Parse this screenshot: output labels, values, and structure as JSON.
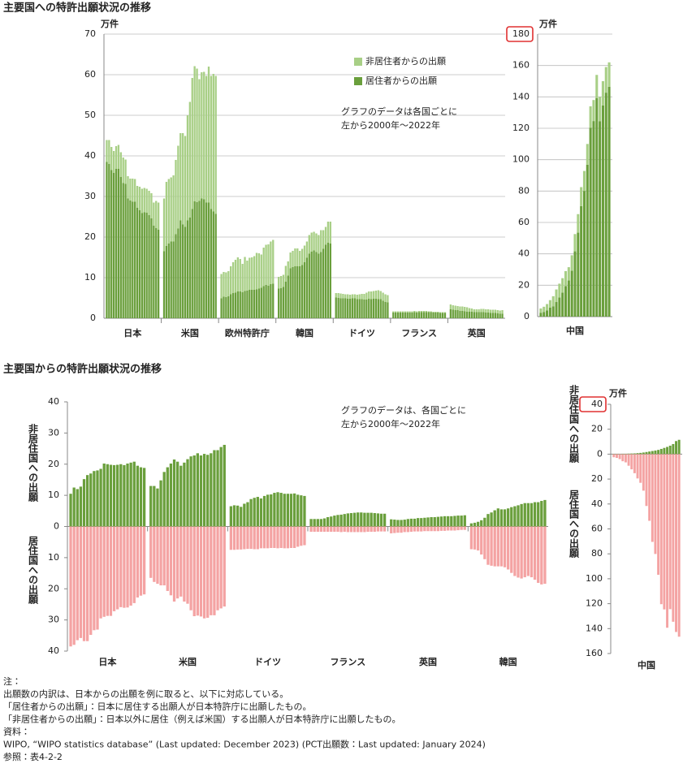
{
  "chart_data": [
    {
      "type": "stacked-bar",
      "title": "主要国への特許出願状況の推移",
      "unit": "万件",
      "ylim": [
        0,
        70
      ],
      "yticks": [
        0,
        10,
        20,
        30,
        40,
        50,
        60,
        70
      ],
      "grid": true,
      "note": [
        "グラフのデータは各国ごとに",
        "左から2000年～2022年"
      ],
      "categories": [
        "日本",
        "米国",
        "欧州特許庁",
        "韓国",
        "ドイツ",
        "フランス",
        "英国"
      ],
      "series": [
        {
          "name": "居住者からの出願",
          "color": "#6a9f3c",
          "values": [
            [
              38.5,
              38,
              36.5,
              35.8,
              36.8,
              36.8,
              34.8,
              33.3,
              33.1,
              29.5,
              29,
              28.7,
              28.7,
              27.2,
              26.6,
              25.9,
              26.1,
              26,
              25.4,
              24.6,
              22.8,
              22.2,
              21.8
            ],
            [
              16.5,
              17.8,
              18.4,
              18.9,
              18.9,
              20.7,
              22.1,
              24.1,
              23.1,
              22.5,
              24.1,
              24.8,
              26.9,
              28.8,
              28.6,
              28.9,
              29.5,
              29.3,
              28.5,
              28.5,
              26.9,
              26.3,
              25.7
            ],
            [
              4.9,
              5.3,
              5.2,
              5.4,
              5.9,
              6.2,
              6.3,
              6.6,
              6.6,
              6.4,
              6.7,
              6.8,
              7,
              7,
              7,
              7.1,
              7.3,
              7.5,
              7.9,
              8.2,
              8,
              8.4,
              8.5
            ],
            [
              7.3,
              7.4,
              7.7,
              9,
              10.5,
              12.3,
              12.6,
              12.8,
              12.8,
              12.8,
              13.1,
              13.8,
              14.9,
              15.9,
              16.4,
              16.7,
              16.3,
              15.9,
              16.3,
              17.1,
              18.1,
              18.6,
              18.4
            ],
            [
              5.1,
              5,
              4.9,
              4.9,
              4.9,
              4.8,
              4.8,
              4.9,
              4.9,
              4.7,
              4.7,
              4.7,
              4.6,
              4.6,
              4.8,
              4.7,
              4.8,
              4.8,
              4.7,
              4.7,
              4.3,
              4,
              3.9
            ],
            [
              1.4,
              1.4,
              1.4,
              1.4,
              1.4,
              1.4,
              1.4,
              1.4,
              1.4,
              1.5,
              1.4,
              1.5,
              1.5,
              1.5,
              1.5,
              1.5,
              1.5,
              1.4,
              1.4,
              1.4,
              1.3,
              1.3,
              1.3
            ],
            [
              2.2,
              2.1,
              2,
              2,
              1.8,
              1.8,
              1.7,
              1.6,
              1.6,
              1.6,
              1.5,
              1.5,
              1.5,
              1.5,
              1.5,
              1.4,
              1.4,
              1.3,
              1.3,
              1.3,
              1.2,
              1.1,
              1.1
            ]
          ]
        },
        {
          "name": "非居住者からの出願",
          "color": "#a8cf86",
          "values": [
            [
              5.4,
              5.9,
              5.7,
              5.4,
              5.6,
              5.9,
              6.1,
              6.3,
              6,
              5.5,
              5.4,
              5.7,
              5.6,
              5.4,
              5.8,
              6,
              6,
              5.9,
              6,
              6.2,
              5.7,
              6.7,
              6.7
            ],
            [
              13,
              15.8,
              15.9,
              15.8,
              16.3,
              18.3,
              20.4,
              21.5,
              22.5,
              22.4,
              25.9,
              28.5,
              32.3,
              33.3,
              32.9,
              30,
              31.1,
              31.4,
              31.2,
              33.5,
              32.8,
              33.9,
              34
            ],
            [
              6,
              6.1,
              6.1,
              6.2,
              6.9,
              7.6,
              8.1,
              8.4,
              8,
              7,
              8.4,
              7.4,
              7.9,
              8,
              8.3,
              9,
              8.7,
              8.2,
              9.5,
              9.9,
              10.2,
              10.5,
              10.8
            ],
            [
              2.9,
              3,
              3,
              3.9,
              3.5,
              3.9,
              4,
              4.4,
              4.4,
              3.8,
              4,
              4.1,
              4,
              4.6,
              4.7,
              4.6,
              4.6,
              4.6,
              5.4,
              4.6,
              4.4,
              5.2,
              5.4
            ],
            [
              1.1,
              1.2,
              1.2,
              1.1,
              1,
              1.1,
              1,
              1,
              1,
              1.1,
              1.2,
              1.3,
              1.4,
              1.7,
              1.8,
              1.9,
              1.9,
              2,
              2.2,
              2,
              2,
              1.9,
              1.8
            ],
            [
              0.3,
              0.3,
              0.3,
              0.3,
              0.3,
              0.3,
              0.3,
              0.3,
              0.3,
              0.3,
              0.3,
              0.3,
              0.3,
              0.3,
              0.3,
              0.2,
              0.2,
              0.2,
              0.2,
              0.2,
              0.2,
              0.2,
              0.2
            ],
            [
              1.2,
              1.1,
              1.1,
              1,
              1.1,
              1.1,
              1.1,
              1.1,
              0.9,
              0.8,
              0.7,
              0.7,
              0.7,
              0.8,
              0.8,
              0.8,
              0.8,
              0.8,
              0.8,
              0.8,
              0.8,
              0.8,
              0.9
            ]
          ]
        }
      ]
    },
    {
      "type": "stacked-bar",
      "unit": "万件",
      "ylim": [
        0,
        180
      ],
      "yticks": [
        0,
        20,
        40,
        60,
        80,
        100,
        120,
        140,
        160,
        180
      ],
      "grid": true,
      "categories": [
        "中国"
      ],
      "series": [
        {
          "color": "#6a9f3c",
          "values": [
            [
              2.5,
              3,
              4,
              5.7,
              6.6,
              9.3,
              12.2,
              15.3,
              19.5,
              23,
              29.3,
              41.6,
              53.5,
              70.4,
              80.1,
              96.8,
              120.4,
              124.6,
              139.3,
              124.4,
              134.5,
              142.7,
              146.5
            ]
          ]
        },
        {
          "color": "#a8cf86",
          "values": [
            [
              2.7,
              3.3,
              4,
              4.8,
              6.4,
              8,
              8.8,
              9.2,
              9.5,
              8.5,
              9.8,
              11,
              11.8,
              12.1,
              12.7,
              13.2,
              13.6,
              13.4,
              14.7,
              15.6,
              15.5,
              16.3,
              15.5
            ]
          ]
        }
      ]
    },
    {
      "type": "diverging-bar",
      "title": "主要国からの特許出願状況の推移",
      "ylim": [
        -40,
        40
      ],
      "yticks": [
        {
          "value": -40,
          "label": "40"
        },
        {
          "value": -30,
          "label": "30"
        },
        {
          "value": -20,
          "label": "20"
        },
        {
          "value": -10,
          "label": "10"
        },
        0,
        10,
        20,
        30,
        40
      ],
      "y_label_upper": "非居住国への出願",
      "y_label_lower": "居住国への出願",
      "note": [
        "グラフのデータは、各国ごとに",
        "左から2000年～2022年"
      ],
      "categories": [
        "日本",
        "米国",
        "ドイツ",
        "フランス",
        "英国",
        "韓国"
      ],
      "series": [
        {
          "color": "#6a9f3c",
          "values": [
            [
              10.5,
              12.5,
              12,
              12.8,
              15.2,
              16.5,
              17,
              17.8,
              18,
              18.5,
              20.2,
              20,
              19.8,
              19.7,
              19.8,
              20,
              19.7,
              20.2,
              20.5,
              20.8,
              19.5,
              19,
              18.8
            ],
            [
              13,
              13,
              12.2,
              14.8,
              17.5,
              19,
              20.2,
              21.5,
              20.8,
              19.5,
              20.5,
              21.6,
              22.5,
              22.8,
              23.5,
              22.8,
              23.3,
              23,
              23.5,
              24.5,
              24.5,
              25.5,
              26.2
            ],
            [
              6.5,
              6.8,
              6.7,
              6.3,
              7.3,
              7.8,
              8.8,
              9.2,
              9.5,
              9,
              9.8,
              10.2,
              10.3,
              10.8,
              11,
              10.8,
              10.5,
              10.5,
              10.5,
              10.6,
              10.2,
              10,
              9.8
            ],
            [
              2.4,
              2.4,
              2.4,
              2.4,
              2.6,
              3,
              3.2,
              3.5,
              3.7,
              3.8,
              4,
              4.2,
              4.3,
              4.4,
              4.5,
              4.5,
              4.4,
              4.4,
              4.4,
              4.3,
              4.2,
              4.1,
              4.1
            ],
            [
              2.3,
              2.2,
              2.1,
              2.1,
              2.2,
              2.4,
              2.5,
              2.5,
              2.7,
              2.7,
              2.8,
              2.9,
              3,
              3,
              3.1,
              3.2,
              3.3,
              3.3,
              3.3,
              3.4,
              3.5,
              3.5,
              3.6
            ],
            [
              1,
              1.2,
              1.5,
              2,
              2.8,
              4,
              4.5,
              5.2,
              5.8,
              5.5,
              5.5,
              5.8,
              6.2,
              6.5,
              6.8,
              7.2,
              7.5,
              7.5,
              7.5,
              7.8,
              7.8,
              8.2,
              8.5
            ]
          ]
        },
        {
          "color": "#f4a3a3",
          "values": [
            [
              -38.5,
              -38,
              -36.5,
              -35.8,
              -36.8,
              -36.8,
              -34.8,
              -33.3,
              -33.1,
              -29.5,
              -29,
              -28.7,
              -28.7,
              -27.2,
              -26.6,
              -25.9,
              -26.1,
              -26,
              -25.4,
              -24.6,
              -22.8,
              -22.2,
              -21.8
            ],
            [
              -16.5,
              -17.8,
              -18.4,
              -18.9,
              -18.9,
              -20.7,
              -22.1,
              -24.1,
              -23.1,
              -22.5,
              -24.1,
              -24.8,
              -26.9,
              -28.8,
              -28.6,
              -28.9,
              -29.5,
              -29.3,
              -28.5,
              -28.5,
              -26.9,
              -26.3,
              -25.7
            ],
            [
              -7.5,
              -7.5,
              -7.4,
              -7.4,
              -7.3,
              -7.2,
              -7.2,
              -7.3,
              -7.3,
              -7,
              -7,
              -7,
              -6.9,
              -6.9,
              -7,
              -6.9,
              -7,
              -7,
              -6.9,
              -6.9,
              -6.5,
              -6.2,
              -6
            ],
            [
              -1.7,
              -1.7,
              -1.7,
              -1.7,
              -1.7,
              -1.7,
              -1.7,
              -1.7,
              -1.7,
              -1.8,
              -1.7,
              -1.8,
              -1.8,
              -1.8,
              -1.8,
              -1.8,
              -1.8,
              -1.7,
              -1.7,
              -1.7,
              -1.6,
              -1.6,
              -1.6
            ],
            [
              -2.2,
              -2.1,
              -2,
              -2,
              -1.8,
              -1.8,
              -1.7,
              -1.6,
              -1.6,
              -1.6,
              -1.5,
              -1.5,
              -1.5,
              -1.5,
              -1.5,
              -1.4,
              -1.4,
              -1.3,
              -1.3,
              -1.3,
              -1.2,
              -1.1,
              -1.1
            ],
            [
              -7.3,
              -7.4,
              -7.7,
              -9,
              -10.5,
              -12.3,
              -12.6,
              -12.8,
              -12.8,
              -12.8,
              -13.1,
              -13.8,
              -14.9,
              -15.9,
              -16.4,
              -16.7,
              -16.3,
              -15.9,
              -16.3,
              -17.1,
              -18.1,
              -18.6,
              -18.4
            ]
          ]
        }
      ]
    },
    {
      "type": "diverging-bar",
      "unit": "万件",
      "ylim": [
        -160,
        40
      ],
      "yticks": [
        {
          "value": -160,
          "label": "160"
        },
        {
          "value": -140,
          "label": "140"
        },
        {
          "value": -120,
          "label": "120"
        },
        {
          "value": -100,
          "label": "100"
        },
        {
          "value": -80,
          "label": "80"
        },
        {
          "value": -60,
          "label": "60"
        },
        {
          "value": -40,
          "label": "40"
        },
        {
          "value": -20,
          "label": "20"
        },
        0,
        20,
        40
      ],
      "y_label_upper": "非居住国への出願",
      "y_label_lower": "居住国への出願",
      "categories": [
        "中国"
      ],
      "series": [
        {
          "color": "#6a9f3c",
          "values": [
            [
              0.2,
              0.2,
              0.2,
              0.3,
              0.3,
              0.4,
              0.5,
              0.6,
              0.8,
              1,
              1.3,
              1.7,
              2.1,
              2.5,
              2.9,
              3.4,
              4.2,
              5,
              5.8,
              6.8,
              8.1,
              10.5,
              11.5
            ]
          ]
        },
        {
          "color": "#f4a3a3",
          "values": [
            [
              -2.5,
              -3,
              -4,
              -5.7,
              -6.6,
              -9.3,
              -12.2,
              -15.3,
              -19.5,
              -23,
              -29.3,
              -41.6,
              -53.5,
              -70.4,
              -80.1,
              -96.8,
              -120.4,
              -124.6,
              -139.3,
              -124.4,
              -134.5,
              -142.7,
              -146.5
            ]
          ]
        }
      ]
    }
  ],
  "notes": [
    "注：",
    "出願数の内訳は、日本からの出願を例に取ると、以下に対応している。",
    "「居住者からの出願」：日本に居住する出願人が日本特許庁に出願したもの。",
    "「非居住者からの出願」：日本以外に居住（例えば米国）する出願人が日本特許庁に出願したもの。",
    "資料：",
    "WIPO, “WIPO statistics database” (Last updated: December 2023) (PCT出願数：Last updated: January 2024)",
    "参照：表4-2-2"
  ]
}
